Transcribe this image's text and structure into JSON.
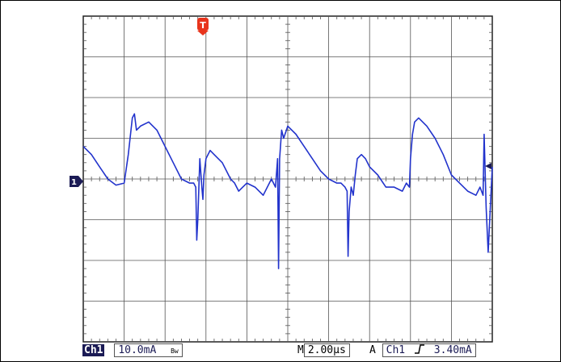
{
  "colors": {
    "trace": "#2233cc",
    "grid": "#555555",
    "trigger_marker": "#e8341c",
    "channel_marker": "#1b1b55"
  },
  "markers": {
    "channel": "1",
    "trigger": "T"
  },
  "status_bar": {
    "channel_tag": "Ch1",
    "vertical_scale": "10.0mA",
    "bandwidth_symbol": "Bw",
    "timebase_prefix": "M",
    "timebase": "2.00µs",
    "trigger_mode": "A",
    "trigger_source": "Ch1",
    "trigger_slope": "rising-edge-icon",
    "trigger_level": "3.40mA"
  },
  "chart_data": {
    "type": "line",
    "title": "",
    "xlabel": "",
    "ylabel": "",
    "xlim": [
      -10,
      10
    ],
    "ylim": [
      -40,
      40
    ],
    "grid": true,
    "x_units": "µs",
    "y_units": "mA",
    "series": [
      {
        "x": [
          -10,
          -9.6,
          -9.2,
          -8.8,
          -8.4,
          -8.0,
          -7.8,
          -7.6,
          -7.5,
          -7.4,
          -7.2,
          -6.8,
          -6.4,
          -6.0,
          -5.6,
          -5.2,
          -4.8,
          -4.6,
          -4.5,
          -4.45,
          -4.4,
          -4.3,
          -4.2,
          -4.15,
          -4.1,
          -4.0,
          -3.8,
          -3.6,
          -3.4,
          -3.2,
          -3.0,
          -2.8,
          -2.6,
          -2.4,
          -2.2,
          -2.0,
          -1.6,
          -1.2,
          -0.8,
          -0.6,
          -0.5,
          -0.45,
          -0.4,
          -0.3,
          -0.2,
          0,
          0.4,
          0.8,
          1.2,
          1.6,
          2.0,
          2.4,
          2.6,
          2.8,
          2.9,
          2.95,
          3.0,
          3.1,
          3.2,
          3.3,
          3.4,
          3.6,
          3.8,
          4.0,
          4.4,
          4.8,
          5.2,
          5.6,
          5.8,
          5.95,
          6.0,
          6.1,
          6.2,
          6.4,
          6.8,
          7.2,
          7.6,
          8.0,
          8.4,
          8.8,
          9.2,
          9.4,
          9.55,
          9.6,
          9.7,
          9.8,
          10
        ],
        "y": [
          8,
          6,
          3,
          0,
          -1.5,
          -1,
          6,
          15,
          16,
          12,
          13,
          14,
          12,
          8,
          4,
          0,
          -1,
          -1,
          -2,
          -15,
          -10,
          5,
          -2,
          -5,
          1,
          5,
          7,
          6,
          5,
          4,
          2,
          0,
          -1,
          -3,
          -2,
          -1,
          -2,
          -4,
          0,
          -2,
          5,
          -22,
          5,
          12,
          10,
          13,
          11,
          8,
          5,
          2,
          0,
          -1,
          -1,
          -2,
          -3,
          -19,
          -8,
          -2,
          -4,
          1,
          5,
          6,
          5,
          3,
          1,
          -2,
          -2,
          -3,
          -1,
          -2,
          5,
          11,
          14,
          15,
          13,
          10,
          6,
          1,
          -1,
          -3,
          -4,
          -2,
          -4,
          11,
          -7,
          -18,
          3
        ]
      }
    ]
  }
}
